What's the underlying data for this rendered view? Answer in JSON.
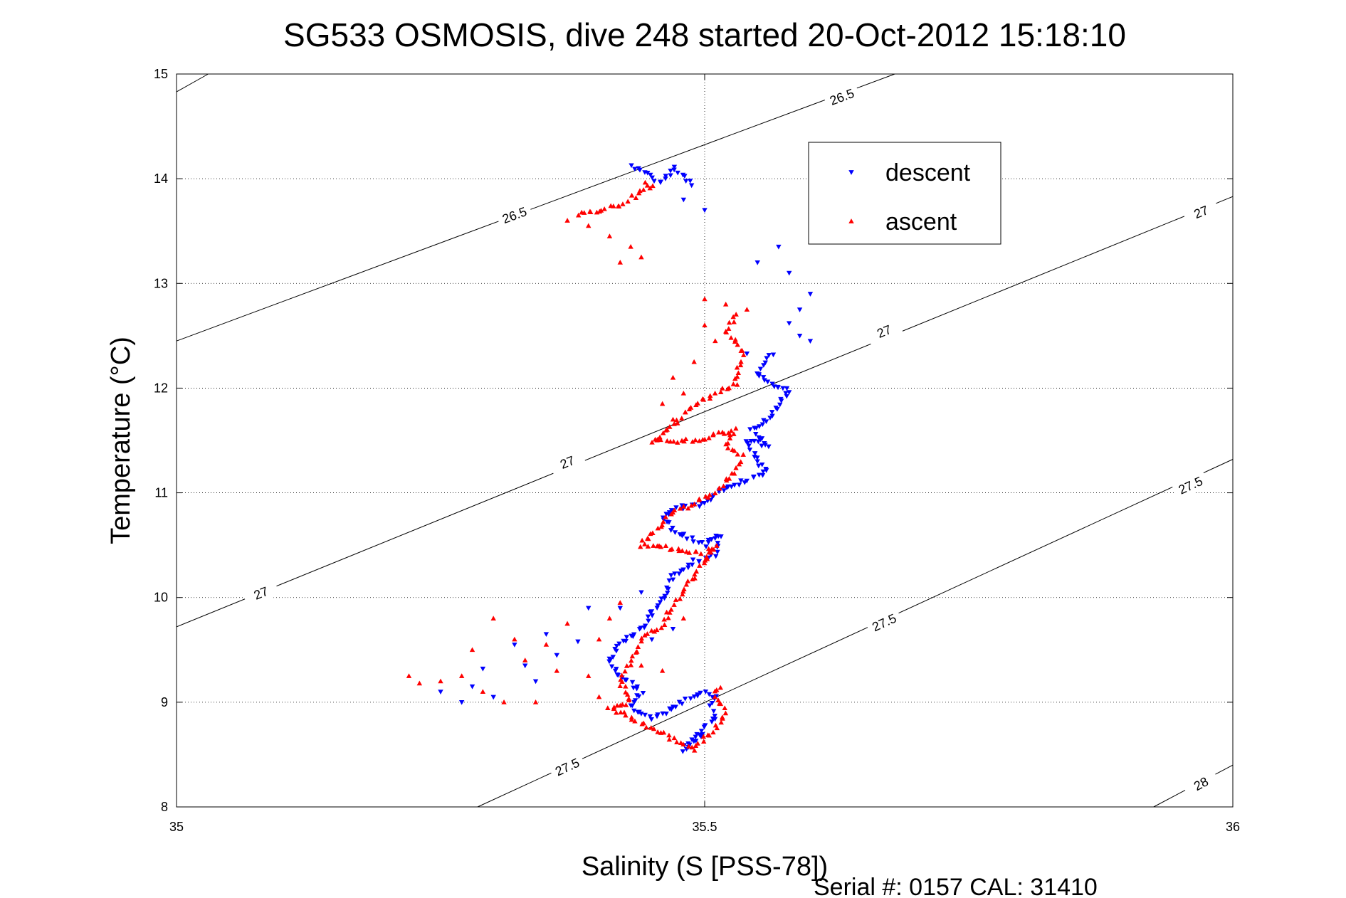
{
  "chart_data": {
    "type": "scatter",
    "title": "SG533 OSMOSIS, dive 248 started 20-Oct-2012 15:18:10",
    "xlabel": "Salinity (S [PSS-78])",
    "ylabel": "Temperature (°C)",
    "xlim": [
      35,
      36
    ],
    "ylim": [
      8,
      15
    ],
    "xticks": [
      35,
      35.5,
      36
    ],
    "xtick_labels": [
      "35",
      "35.5",
      "36"
    ],
    "yticks": [
      8,
      9,
      10,
      11,
      12,
      13,
      14,
      15
    ],
    "ytick_labels": [
      "8",
      "9",
      "10",
      "11",
      "12",
      "13",
      "14",
      "15"
    ],
    "grid": true,
    "legend_position": "top-right",
    "footer": "Serial #: 0157  CAL: 31410",
    "contours": [
      {
        "label": "26.5",
        "points": [
          [
            35.0,
            14.83
          ],
          [
            35.03,
            15.0
          ]
        ],
        "labels_at": []
      },
      {
        "label": "26.5",
        "points": [
          [
            35.0,
            12.45
          ],
          [
            35.68,
            15.0
          ]
        ],
        "labels_at": [
          [
            35.32,
            13.65
          ],
          [
            35.63,
            14.78
          ]
        ]
      },
      {
        "label": "27",
        "points": [
          [
            35.0,
            9.72
          ],
          [
            36.0,
            13.83
          ]
        ],
        "labels_at": [
          [
            35.08,
            10.04
          ],
          [
            35.37,
            11.29
          ],
          [
            35.67,
            12.54
          ],
          [
            35.97,
            13.68
          ]
        ]
      },
      {
        "label": "27.5",
        "points": [
          [
            35.285,
            8.0
          ],
          [
            36.0,
            11.32
          ]
        ],
        "labels_at": [
          [
            35.37,
            8.38
          ],
          [
            35.67,
            9.76
          ],
          [
            35.96,
            11.07
          ]
        ]
      },
      {
        "label": "28",
        "points": [
          [
            35.925,
            8.0
          ],
          [
            36.0,
            8.4
          ]
        ],
        "labels_at": [
          [
            35.97,
            8.22
          ]
        ]
      }
    ],
    "series": [
      {
        "name": "descent",
        "color": "#0000ff",
        "marker": "triangle-down",
        "path": [
          [
            35.43,
            14.12
          ],
          [
            35.44,
            14.1
          ],
          [
            35.445,
            14.05
          ],
          [
            35.45,
            14.0
          ],
          [
            35.46,
            13.97
          ],
          [
            35.47,
            14.1
          ],
          [
            35.49,
            13.93
          ],
          [
            35.56,
            12.3
          ],
          [
            35.55,
            12.12
          ],
          [
            35.56,
            12.05
          ],
          [
            35.58,
            11.98
          ],
          [
            35.57,
            11.85
          ],
          [
            35.56,
            11.7
          ],
          [
            35.545,
            11.6
          ],
          [
            35.56,
            11.45
          ],
          [
            35.54,
            11.5
          ],
          [
            35.55,
            11.3
          ],
          [
            35.56,
            11.2
          ],
          [
            35.52,
            11.05
          ],
          [
            35.5,
            10.9
          ],
          [
            35.47,
            10.85
          ],
          [
            35.46,
            10.78
          ],
          [
            35.47,
            10.65
          ],
          [
            35.49,
            10.55
          ],
          [
            35.5,
            10.5
          ],
          [
            35.515,
            10.6
          ],
          [
            35.51,
            10.4
          ],
          [
            35.49,
            10.35
          ],
          [
            35.47,
            10.2
          ],
          [
            35.46,
            10.0
          ],
          [
            35.45,
            9.85
          ],
          [
            35.44,
            9.7
          ],
          [
            35.42,
            9.55
          ],
          [
            35.41,
            9.4
          ],
          [
            35.42,
            9.25
          ],
          [
            35.44,
            9.1
          ],
          [
            35.43,
            8.95
          ],
          [
            35.45,
            8.85
          ],
          [
            35.48,
            9.0
          ],
          [
            35.5,
            9.1
          ],
          [
            35.51,
            9.05
          ],
          [
            35.505,
            8.95
          ],
          [
            35.51,
            8.85
          ],
          [
            35.5,
            8.75
          ],
          [
            35.49,
            8.65
          ],
          [
            35.48,
            8.55
          ],
          [
            35.5,
            8.7
          ]
        ],
        "sparse": [
          [
            35.54,
            12.33
          ],
          [
            35.565,
            12.32
          ],
          [
            35.59,
            12.5
          ],
          [
            35.58,
            12.62
          ],
          [
            35.59,
            12.75
          ],
          [
            35.6,
            12.9
          ],
          [
            35.58,
            13.1
          ],
          [
            35.55,
            13.2
          ],
          [
            35.57,
            13.35
          ],
          [
            35.5,
            13.7
          ],
          [
            35.48,
            13.8
          ],
          [
            35.6,
            12.45
          ],
          [
            35.47,
            9.7
          ],
          [
            35.39,
            9.9
          ],
          [
            35.38,
            9.58
          ],
          [
            35.35,
            9.65
          ],
          [
            35.36,
            9.45
          ],
          [
            35.33,
            9.35
          ],
          [
            35.32,
            9.55
          ],
          [
            35.34,
            9.2
          ],
          [
            35.3,
            9.05
          ],
          [
            35.28,
            9.15
          ],
          [
            35.25,
            9.1
          ],
          [
            35.27,
            9.0
          ],
          [
            35.29,
            9.32
          ],
          [
            35.42,
            9.9
          ],
          [
            35.44,
            10.05
          ],
          [
            35.45,
            9.6
          ]
        ],
        "n": 260
      },
      {
        "name": "ascent",
        "color": "#ff0000",
        "marker": "triangle-up",
        "path": [
          [
            35.38,
            13.65
          ],
          [
            35.4,
            13.7
          ],
          [
            35.42,
            13.75
          ],
          [
            35.43,
            13.82
          ],
          [
            35.44,
            13.87
          ],
          [
            35.45,
            13.92
          ],
          [
            35.44,
            13.98
          ],
          [
            35.53,
            12.7
          ],
          [
            35.52,
            12.55
          ],
          [
            35.53,
            12.45
          ],
          [
            35.535,
            12.3
          ],
          [
            35.53,
            12.15
          ],
          [
            35.53,
            12.05
          ],
          [
            35.5,
            11.9
          ],
          [
            35.48,
            11.75
          ],
          [
            35.465,
            11.6
          ],
          [
            35.45,
            11.5
          ],
          [
            35.47,
            11.48
          ],
          [
            35.49,
            11.5
          ],
          [
            35.51,
            11.55
          ],
          [
            35.53,
            11.6
          ],
          [
            35.52,
            11.45
          ],
          [
            35.535,
            11.35
          ],
          [
            35.53,
            11.2
          ],
          [
            35.51,
            11.0
          ],
          [
            35.49,
            10.9
          ],
          [
            35.47,
            10.8
          ],
          [
            35.45,
            10.6
          ],
          [
            35.44,
            10.5
          ],
          [
            35.46,
            10.48
          ],
          [
            35.48,
            10.45
          ],
          [
            35.5,
            10.4
          ],
          [
            35.51,
            10.5
          ],
          [
            35.46,
            9.75
          ],
          [
            35.44,
            9.6
          ],
          [
            35.43,
            9.4
          ],
          [
            35.42,
            9.2
          ],
          [
            35.43,
            9.0
          ],
          [
            35.41,
            8.95
          ],
          [
            35.42,
            8.9
          ],
          [
            35.49,
            8.55
          ],
          [
            35.5,
            8.65
          ],
          [
            35.51,
            8.75
          ],
          [
            35.52,
            8.9
          ],
          [
            35.51,
            9.1
          ],
          [
            35.52,
            9.15
          ]
        ],
        "sparse": [
          [
            35.43,
            13.35
          ],
          [
            35.42,
            13.2
          ],
          [
            35.44,
            13.25
          ],
          [
            35.39,
            13.55
          ],
          [
            35.37,
            13.6
          ],
          [
            35.41,
            13.45
          ],
          [
            35.52,
            12.8
          ],
          [
            35.5,
            12.6
          ],
          [
            35.51,
            12.45
          ],
          [
            35.48,
            11.95
          ],
          [
            35.46,
            11.85
          ],
          [
            35.47,
            11.7
          ],
          [
            35.42,
            9.95
          ],
          [
            35.41,
            9.8
          ],
          [
            35.4,
            9.6
          ],
          [
            35.37,
            9.75
          ],
          [
            35.35,
            9.55
          ],
          [
            35.33,
            9.4
          ],
          [
            35.32,
            9.6
          ],
          [
            35.3,
            9.8
          ],
          [
            35.28,
            9.5
          ],
          [
            35.27,
            9.25
          ],
          [
            35.25,
            9.2
          ],
          [
            35.23,
            9.18
          ],
          [
            35.22,
            9.25
          ],
          [
            35.29,
            9.1
          ],
          [
            35.31,
            9.0
          ],
          [
            35.34,
            9.0
          ],
          [
            35.36,
            9.3
          ],
          [
            35.39,
            9.25
          ],
          [
            35.4,
            9.05
          ],
          [
            35.44,
            9.35
          ],
          [
            35.46,
            9.3
          ],
          [
            35.48,
            9.8
          ],
          [
            35.5,
            12.85
          ],
          [
            35.54,
            12.75
          ],
          [
            35.49,
            12.25
          ],
          [
            35.47,
            12.1
          ]
        ],
        "n": 270
      }
    ]
  }
}
